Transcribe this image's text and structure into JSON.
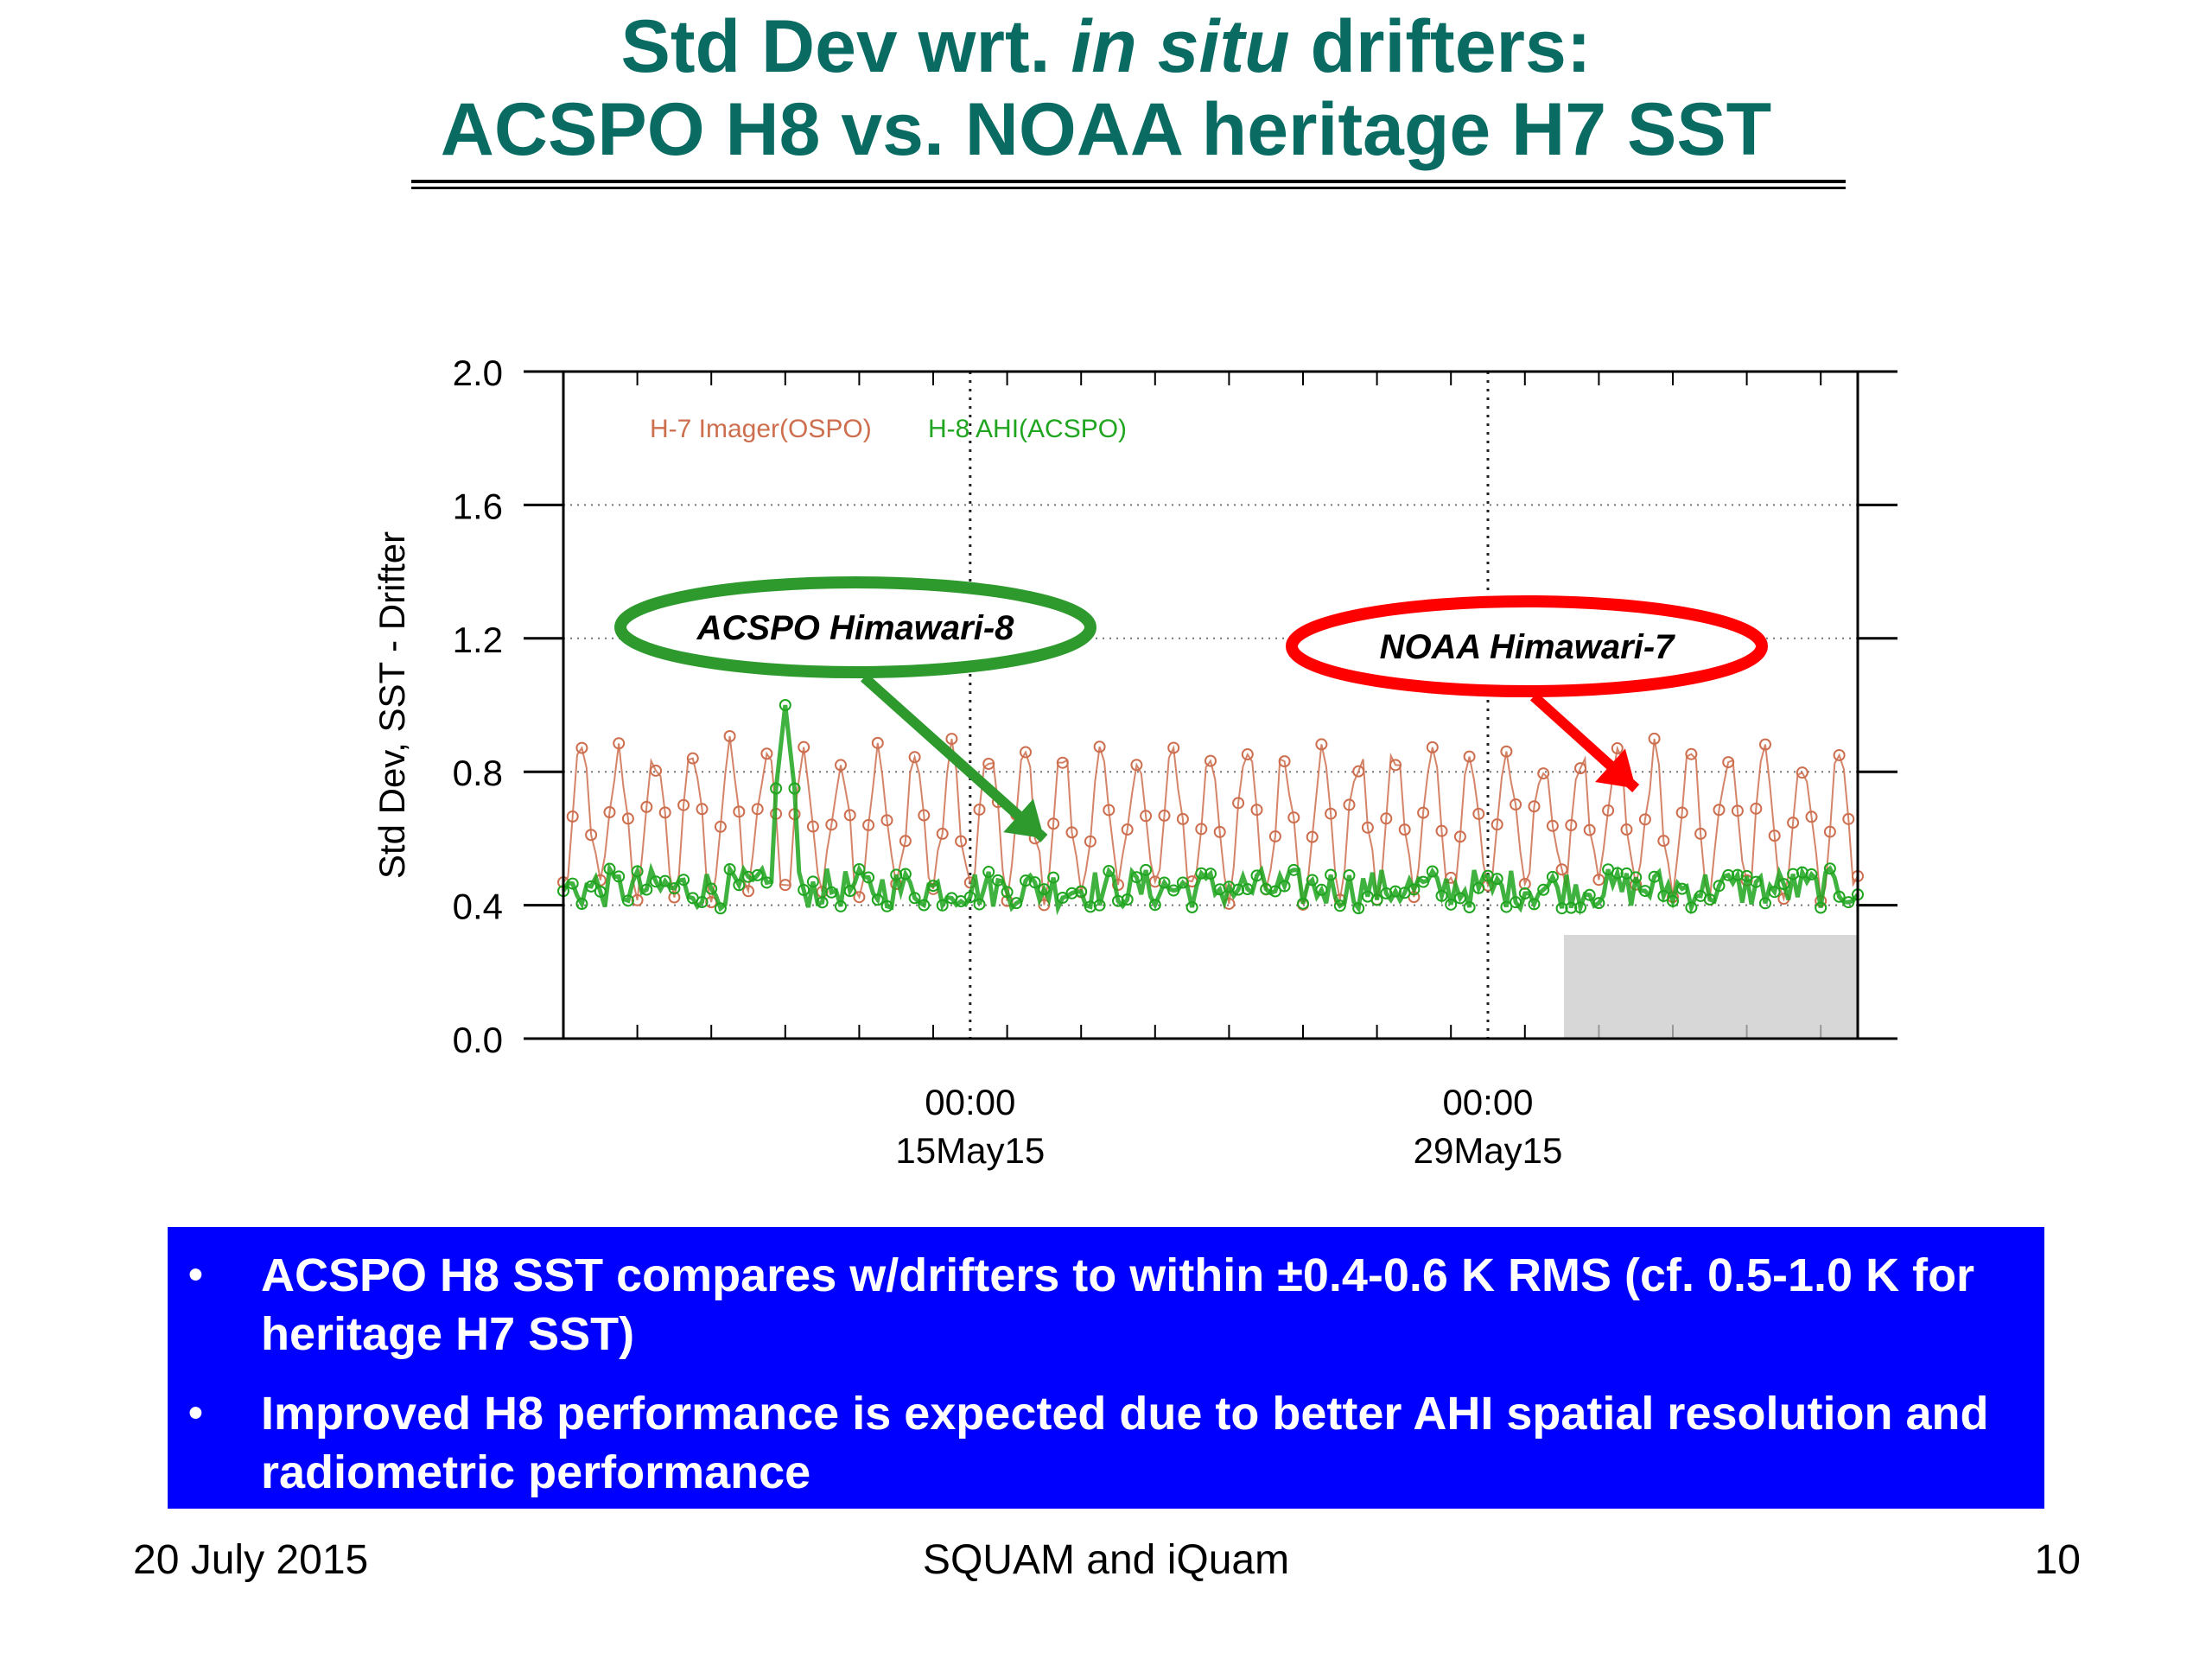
{
  "slide": {
    "title_line1_pre": "Std Dev wrt. ",
    "title_line1_em": "in situ",
    "title_line1_post": " drifters:",
    "title_line2": "ACSPO H8 vs. NOAA heritage H7 SST",
    "bullets": [
      "ACSPO H8 SST compares w/drifters to within ±0.4-0.6 K RMS (cf. 0.5-1.0 K for heritage H7 SST)",
      "Improved H8 performance is expected due to better AHI spatial resolution and radiometric performance"
    ],
    "bullet_symbol": "•",
    "footer_left": "20 July 2015",
    "footer_center": "SQUAM and iQuam",
    "footer_right": "10",
    "colors": {
      "title": "#0a6b63",
      "box": "#0000ff",
      "h7": "#cd6f4f",
      "h8": "#1fa51f",
      "callout_green": "#2e9a2e",
      "callout_red": "#ff0000"
    }
  },
  "chart_data": {
    "type": "line",
    "ylabel": "Std Dev,  SST - Drifter",
    "ylim": [
      0.0,
      2.0
    ],
    "yticks": [
      "0.0",
      "0.4",
      "0.8",
      "1.2",
      "1.6",
      "2.0"
    ],
    "x_range": [
      "2015-05-04",
      "2015-06-08"
    ],
    "x_ticks": [
      {
        "date": "2015-05-15",
        "label_time": "00:00",
        "label_date": "15May15"
      },
      {
        "date": "2015-05-29",
        "label_time": "00:00",
        "label_date": "29May15"
      }
    ],
    "grid": true,
    "legend_placement": "top-left",
    "series": [
      {
        "name": "H-7 Imager(OSPO)",
        "color": "#cd6f4f",
        "typical_range": [
          0.45,
          0.85
        ],
        "mean": 0.62
      },
      {
        "name": "H-8 AHI(ACSPO)",
        "color": "#1fa51f",
        "typical_range": [
          0.38,
          0.52
        ],
        "mean": 0.45
      }
    ],
    "annotations": [
      {
        "text": "ACSPO Himawari-8",
        "color": "#2e9a2e",
        "points_to_date": "2015-05-17",
        "points_to_value": 0.6
      },
      {
        "text": "NOAA Himawari-7",
        "color": "#ff0000",
        "points_to_date": "2015-06-02",
        "points_to_value": 0.75
      }
    ]
  }
}
